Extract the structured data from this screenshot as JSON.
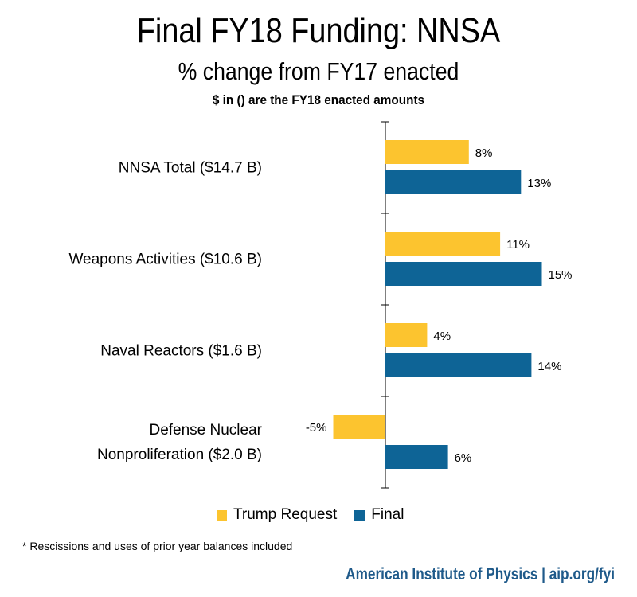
{
  "chart_data": {
    "type": "bar",
    "title": "Final FY18 Funding: NNSA",
    "subtitle": "% change from FY17 enacted",
    "note": "$ in () are the FY18 enacted amounts",
    "categories": [
      "NNSA Total ($14.7 B)",
      "Weapons Activities ($10.6 B)",
      "Naval Reactors ($1.6 B)",
      "Defense Nuclear Nonproliferation ($2.0 B)"
    ],
    "category_lines": [
      [
        "NNSA Total ($14.7 B)"
      ],
      [
        "Weapons Activities ($10.6 B)"
      ],
      [
        "Naval Reactors ($1.6 B)"
      ],
      [
        "Defense Nuclear",
        "Nonproliferation ($2.0 B)"
      ]
    ],
    "series": [
      {
        "name": "Trump Request",
        "color": "#fcc42f",
        "values": [
          8,
          11,
          4,
          -5
        ],
        "labels": [
          "8%",
          "11%",
          "4%",
          "-5%"
        ]
      },
      {
        "name": "Final",
        "color": "#0e6496",
        "values": [
          13,
          15,
          14,
          6
        ],
        "labels": [
          "13%",
          "15%",
          "14%",
          "6%"
        ]
      }
    ],
    "orientation": "horizontal",
    "xlim": [
      -5,
      15
    ],
    "grid": false,
    "legend_position": "bottom"
  },
  "footnote": "* Rescissions and uses of prior year balances included",
  "credit": "American Institute of Physics | aip.org/fyi"
}
